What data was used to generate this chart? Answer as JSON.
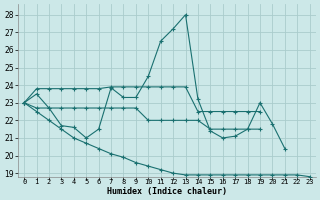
{
  "bg_color": "#cce8e8",
  "grid_color": "#aacccc",
  "line_color": "#1a7070",
  "xlabel": "Humidex (Indice chaleur)",
  "xlim": [
    -0.5,
    23.5
  ],
  "ylim": [
    18.8,
    28.6
  ],
  "yticks": [
    19,
    20,
    21,
    22,
    23,
    24,
    25,
    26,
    27,
    28
  ],
  "xticks": [
    0,
    1,
    2,
    3,
    4,
    5,
    6,
    7,
    8,
    9,
    10,
    11,
    12,
    13,
    14,
    15,
    16,
    17,
    18,
    19,
    20,
    21,
    22,
    23
  ],
  "xtick_labels": [
    "0",
    "1",
    "2",
    "3",
    "4",
    "5",
    "6",
    "7",
    "8",
    "9",
    "10",
    "11",
    "12",
    "13",
    "14",
    "15",
    "16",
    "17",
    "18",
    "19",
    "20",
    "21",
    "22",
    "23"
  ],
  "line1_x": [
    0,
    1,
    2,
    3,
    4,
    5,
    6,
    7,
    8,
    9,
    10,
    11,
    12,
    13,
    14,
    15,
    16,
    17,
    18,
    19,
    20,
    21
  ],
  "line1_y": [
    23,
    23.5,
    22.7,
    21.7,
    21.6,
    21.0,
    21.5,
    23.85,
    23.3,
    23.3,
    24.5,
    26.5,
    27.2,
    28.0,
    23.2,
    21.4,
    21.0,
    21.1,
    21.5,
    23.0,
    21.8,
    20.4
  ],
  "line2_x": [
    0,
    1,
    2,
    3,
    4,
    5,
    6,
    7,
    8,
    9,
    10,
    11,
    12,
    13,
    14,
    15,
    16,
    17,
    18,
    19
  ],
  "line2_y": [
    23,
    23.8,
    23.8,
    23.8,
    23.8,
    23.8,
    23.8,
    23.9,
    23.9,
    23.9,
    23.9,
    23.9,
    23.9,
    23.9,
    22.5,
    22.5,
    22.5,
    22.5,
    22.5,
    22.5
  ],
  "line3_x": [
    0,
    1,
    2,
    3,
    4,
    5,
    6,
    7,
    8,
    9,
    10,
    11,
    12,
    13,
    14,
    15,
    16,
    17,
    18,
    19
  ],
  "line3_y": [
    23,
    22.7,
    22.7,
    22.7,
    22.7,
    22.7,
    22.7,
    22.7,
    22.7,
    22.7,
    22.0,
    22.0,
    22.0,
    22.0,
    22.0,
    21.5,
    21.5,
    21.5,
    21.5,
    21.5
  ],
  "line4_x": [
    0,
    1,
    2,
    3,
    4,
    5,
    6,
    7,
    8,
    9,
    10,
    11,
    12,
    13,
    14,
    15,
    16,
    17,
    18,
    19,
    20,
    21,
    22,
    23
  ],
  "line4_y": [
    23,
    22.5,
    22.0,
    21.5,
    21.0,
    20.7,
    20.4,
    20.1,
    19.9,
    19.6,
    19.4,
    19.2,
    19.0,
    18.9,
    18.9,
    18.9,
    18.9,
    18.9,
    18.9,
    18.9,
    18.9,
    18.9,
    18.9,
    18.8
  ]
}
